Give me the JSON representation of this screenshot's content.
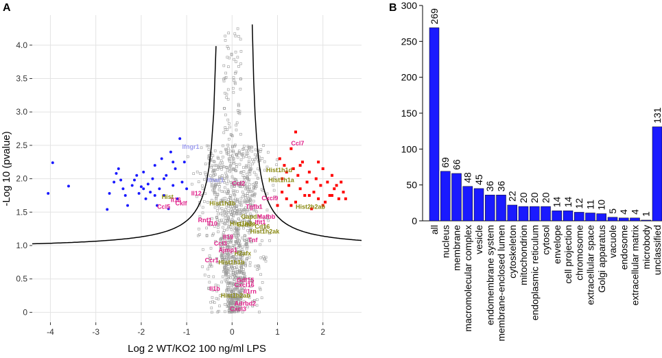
{
  "panels": {
    "a": "A",
    "b": "B"
  },
  "colors": {
    "down": "#1a1aff",
    "up": "#ff0000",
    "grey": "#9a9a9a",
    "magenta": "#e0208a",
    "olive": "#8a8a10",
    "lilac": "#9b9bef",
    "bar": "#1a1aff",
    "curve": "#000000"
  },
  "chart_data": [
    {
      "type": "scatter",
      "title": "",
      "panel": "A",
      "xlabel": "Log 2 WT/KO2 100 ng/ml LPS",
      "ylabel": "-Log 10 (pvalue)",
      "xlim": [
        -4.4,
        2.85
      ],
      "ylim": [
        -0.15,
        4.45
      ],
      "xticks": [
        -4,
        -3,
        -2,
        -1,
        0,
        1,
        2
      ],
      "xtick_labels": [
        "-4",
        "-3",
        "-2",
        "-1",
        "0",
        "1",
        "2"
      ],
      "yticks": [
        0,
        0.5,
        1.0,
        1.5,
        2.0,
        2.5,
        3.0,
        3.5,
        4.0
      ],
      "ytick_labels": [
        "0",
        "0.5",
        "1.0",
        "1.5",
        "2.0",
        "2.5",
        "3.0",
        "3.5",
        "4.0"
      ],
      "grid": true,
      "threshold_curve": "hyperbolic significance cutoff, asymptotes near x = -0.25 and x = 0.35",
      "down_points": [
        [
          -4.05,
          1.78
        ],
        [
          -3.95,
          2.24
        ],
        [
          -3.6,
          1.89
        ],
        [
          -2.75,
          1.54
        ],
        [
          -2.7,
          1.78
        ],
        [
          -2.6,
          1.95
        ],
        [
          -2.55,
          2.08
        ],
        [
          -2.5,
          2.15
        ],
        [
          -2.45,
          1.98
        ],
        [
          -2.4,
          1.85
        ],
        [
          -2.35,
          1.75
        ],
        [
          -2.3,
          1.6
        ],
        [
          -2.2,
          1.9
        ],
        [
          -2.15,
          1.98
        ],
        [
          -2.1,
          2.05
        ],
        [
          -2.05,
          1.78
        ],
        [
          -2.0,
          1.88
        ],
        [
          -1.95,
          2.1
        ],
        [
          -1.9,
          1.7
        ],
        [
          -1.85,
          1.92
        ],
        [
          -1.8,
          1.8
        ],
        [
          -1.75,
          2.0
        ],
        [
          -1.7,
          2.2
        ],
        [
          -1.65,
          1.6
        ],
        [
          -1.6,
          1.85
        ],
        [
          -1.55,
          2.3
        ],
        [
          -1.5,
          1.75
        ],
        [
          -1.45,
          2.05
        ],
        [
          -1.4,
          1.55
        ],
        [
          -1.35,
          2.4
        ],
        [
          -1.3,
          1.9
        ],
        [
          -1.25,
          2.15
        ],
        [
          -1.2,
          1.7
        ],
        [
          -1.15,
          2.6
        ],
        [
          -1.1,
          1.95
        ],
        [
          -1.05,
          2.25
        ],
        [
          -1.0,
          1.85
        ],
        [
          -1.95,
          1.85
        ],
        [
          -1.7,
          1.75
        ],
        [
          -1.5,
          2.0
        ],
        [
          -1.3,
          2.25
        ]
      ],
      "up_points": [
        [
          1.0,
          1.6
        ],
        [
          1.05,
          2.3
        ],
        [
          1.1,
          1.8
        ],
        [
          1.1,
          2.0
        ],
        [
          1.15,
          2.2
        ],
        [
          1.2,
          1.7
        ],
        [
          1.25,
          1.9
        ],
        [
          1.3,
          2.45
        ],
        [
          1.35,
          2.15
        ],
        [
          1.4,
          2.7
        ],
        [
          1.4,
          1.65
        ],
        [
          1.45,
          2.05
        ],
        [
          1.5,
          1.85
        ],
        [
          1.55,
          2.25
        ],
        [
          1.6,
          1.75
        ],
        [
          1.65,
          1.95
        ],
        [
          1.7,
          2.1
        ],
        [
          1.75,
          1.55
        ],
        [
          1.8,
          1.8
        ],
        [
          1.85,
          2.0
        ],
        [
          1.9,
          1.7
        ],
        [
          1.95,
          1.9
        ],
        [
          2.0,
          2.15
        ],
        [
          2.05,
          1.65
        ],
        [
          2.1,
          1.95
        ],
        [
          2.15,
          1.75
        ],
        [
          2.2,
          2.05
        ],
        [
          2.25,
          1.85
        ],
        [
          2.3,
          1.9
        ],
        [
          2.35,
          1.7
        ],
        [
          2.4,
          1.95
        ],
        [
          2.45,
          1.8
        ],
        [
          2.5,
          1.7
        ],
        [
          1.2,
          2.1
        ],
        [
          1.3,
          1.6
        ],
        [
          1.5,
          2.2
        ],
        [
          1.7,
          1.75
        ],
        [
          1.9,
          2.25
        ],
        [
          2.0,
          1.6
        ],
        [
          2.2,
          1.75
        ]
      ],
      "labels": [
        {
          "text": "Ccl7",
          "x": 1.3,
          "y": 2.5,
          "color": "magenta"
        },
        {
          "text": "Hist1h1d",
          "x": 0.75,
          "y": 2.1,
          "color": "olive"
        },
        {
          "text": "Hist1h1a",
          "x": 0.8,
          "y": 1.95,
          "color": "olive"
        },
        {
          "text": "Ccl2",
          "x": 0.0,
          "y": 1.9,
          "color": "magenta"
        },
        {
          "text": "Cxcl9",
          "x": 0.65,
          "y": 1.68,
          "color": "magenta"
        },
        {
          "text": "Hist2h2ab",
          "x": 1.4,
          "y": 1.55,
          "color": "olive"
        },
        {
          "text": "Tgfb1",
          "x": 0.3,
          "y": 1.55,
          "color": "magenta"
        },
        {
          "text": "Gapdh",
          "x": 0.2,
          "y": 1.4,
          "color": "olive"
        },
        {
          "text": "Mafbb",
          "x": 0.55,
          "y": 1.4,
          "color": "magenta"
        },
        {
          "text": "Gzmb",
          "x": 0.1,
          "y": 1.28,
          "color": "olive"
        },
        {
          "text": "Ifit1",
          "x": 0.5,
          "y": 1.32,
          "color": "magenta"
        },
        {
          "text": "Cd16",
          "x": 0.5,
          "y": 1.25,
          "color": "olive"
        },
        {
          "text": "Hist1h2ak",
          "x": 0.4,
          "y": 1.18,
          "color": "olive"
        },
        {
          "text": "Tnf",
          "x": 0.35,
          "y": 1.05,
          "color": "magenta"
        },
        {
          "text": "H2afx",
          "x": 0.05,
          "y": 0.85,
          "color": "olive"
        },
        {
          "text": "Hist1h1b",
          "x": -0.3,
          "y": 0.72,
          "color": "olive"
        },
        {
          "text": "Ajmp1",
          "x": -0.3,
          "y": 0.9,
          "color": "magenta"
        },
        {
          "text": "Ccl3",
          "x": -0.4,
          "y": 1.0,
          "color": "magenta"
        },
        {
          "text": "Il18",
          "x": -0.2,
          "y": 1.1,
          "color": "magenta"
        },
        {
          "text": "Hist1h3a",
          "x": -0.05,
          "y": 1.3,
          "color": "olive"
        },
        {
          "text": "Hist1h3b",
          "x": -0.5,
          "y": 1.6,
          "color": "olive"
        },
        {
          "text": "Il10",
          "x": -0.55,
          "y": 1.3,
          "color": "magenta"
        },
        {
          "text": "Rnf1",
          "x": -0.75,
          "y": 1.35,
          "color": "magenta"
        },
        {
          "text": "Il12",
          "x": -0.9,
          "y": 1.75,
          "color": "magenta"
        },
        {
          "text": "Cklf",
          "x": -1.25,
          "y": 1.6,
          "color": "magenta"
        },
        {
          "text": "Ccl5",
          "x": -1.65,
          "y": 1.55,
          "color": "magenta"
        },
        {
          "text": "Il16",
          "x": -1.35,
          "y": 1.65,
          "color": "magenta"
        },
        {
          "text": "Hist",
          "x": -1.55,
          "y": 1.7,
          "color": "olive"
        },
        {
          "text": "Ifngr1",
          "x": -1.1,
          "y": 2.45,
          "color": "lilac"
        },
        {
          "text": "Ifnar1",
          "x": -0.55,
          "y": 1.95,
          "color": "lilac"
        },
        {
          "text": "Ccr1",
          "x": -0.6,
          "y": 0.75,
          "color": "magenta"
        },
        {
          "text": "Gdf15",
          "x": 0.1,
          "y": 0.45,
          "color": "magenta"
        },
        {
          "text": "Cxcl16",
          "x": 0.05,
          "y": 0.38,
          "color": "magenta"
        },
        {
          "text": "Il1b",
          "x": -0.5,
          "y": 0.32,
          "color": "magenta"
        },
        {
          "text": "Il1rn",
          "x": 0.25,
          "y": 0.28,
          "color": "magenta"
        },
        {
          "text": "Hist1h2ab",
          "x": -0.25,
          "y": 0.22,
          "color": "olive"
        },
        {
          "text": "Adrbd2",
          "x": 0.05,
          "y": 0.1,
          "color": "magenta"
        },
        {
          "text": "Cxcl3",
          "x": -0.05,
          "y": 0.02,
          "color": "magenta"
        }
      ]
    },
    {
      "type": "bar",
      "title": "",
      "panel": "B",
      "xlabel": "",
      "ylabel": "",
      "ylim": [
        0,
        300
      ],
      "yticks": [
        0,
        50,
        100,
        150,
        200,
        250,
        300
      ],
      "ytick_labels": [
        "0",
        "50",
        "100",
        "150",
        "200",
        "250",
        "300"
      ],
      "categories": [
        "all",
        "nucleus",
        "membrane",
        "macromolecular complex",
        "vesicle",
        "endomembrane system",
        "membrane-enclosed lumen",
        "cytoskeleton",
        "mitochondrion",
        "endoplasmic reticulum",
        "cytosol",
        "envelope",
        "cell projection",
        "chromosome",
        "extracellular space",
        "Golgi apparatus",
        "vacuole",
        "endosome",
        "extracellular matrix",
        "microbody",
        "unclassified"
      ],
      "values": [
        269,
        69,
        66,
        48,
        45,
        36,
        36,
        22,
        20,
        20,
        20,
        14,
        14,
        12,
        11,
        10,
        5,
        4,
        4,
        1,
        131
      ],
      "value_labels": [
        "269",
        "69",
        "66",
        "48",
        "45",
        "36",
        "36",
        "22",
        "20",
        "20",
        "20",
        "14",
        "14",
        "12",
        "11",
        "10",
        "5",
        "4",
        "4",
        "1",
        "131"
      ]
    }
  ]
}
